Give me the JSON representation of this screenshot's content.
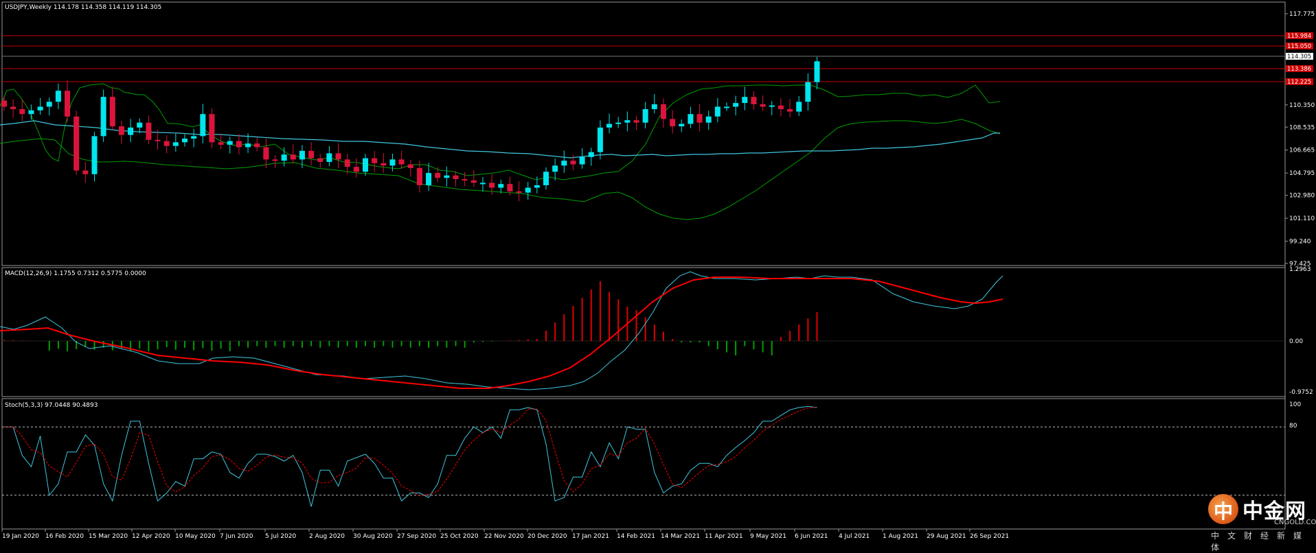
{
  "main": {
    "header": "USDJPY,Weekly  114.178 114.358 114.119 114.305",
    "price_axis": [
      "117.775",
      "110.350",
      "108.535",
      "106.665",
      "104.795",
      "102.980",
      "101.110",
      "99.240",
      "97.425"
    ],
    "price_tags": {
      "current": "114.305",
      "red": [
        "115.984",
        "115.050",
        "113.386",
        "112.225"
      ]
    }
  },
  "macd": {
    "header": "MACD(12,26,9) 1.1755 0.7312 0.5775 0.0000",
    "axis": [
      "1.2963",
      "0.00",
      "-0.9752"
    ]
  },
  "stoch": {
    "header": "Stoch(5,3,3) 97.0448 90.4893",
    "axis": [
      "100",
      "80"
    ]
  },
  "time_axis": [
    "19 Jan 2020",
    "16 Feb 2020",
    "15 Mar 2020",
    "12 Apr 2020",
    "10 May 2020",
    "7 Jun 2020",
    "5 Jul 2020",
    "2 Aug 2020",
    "30 Aug 2020",
    "27 Sep 2020",
    "25 Oct 2020",
    "22 Nov 2020",
    "20 Dec 2020",
    "17 Jan 2021",
    "14 Feb 2021",
    "14 Mar 2021",
    "11 Apr 2021",
    "9 May 2021",
    "6 Jun 2021",
    "4 Jul 2021",
    "1 Aug 2021",
    "29 Aug 2021",
    "26 Sep 2021"
  ],
  "brand": {
    "logo_glyph": "中",
    "name": "中金网",
    "site": "CNGOLD.COM.CN",
    "slogan": "中文财经新媒体"
  },
  "colors": {
    "bull": "#00e5ee",
    "bear": "#dc143c",
    "band": "#00a000",
    "ma": "#40c8e0",
    "macd_pos": "#e00000",
    "macd_neg": "#00a000",
    "signal": "#ff0000",
    "level": "#cc0000"
  },
  "chart_data": {
    "type": "candlestick",
    "symbol": "USDJPY",
    "timeframe": "Weekly",
    "ohlc_last": {
      "open": 114.178,
      "high": 114.358,
      "low": 114.119,
      "close": 114.305
    },
    "price_range": [
      97.425,
      117.775
    ],
    "horizontal_levels": [
      115.984,
      115.05,
      113.386,
      112.225
    ],
    "indicators": {
      "macd": {
        "params": "12,26,9",
        "main": 1.1755,
        "signal": 0.7312,
        "hist": 0.5775
      },
      "stoch": {
        "params": "5,3,3",
        "k": 97.0448,
        "d": 90.4893,
        "levels": [
          80,
          20
        ]
      }
    }
  }
}
